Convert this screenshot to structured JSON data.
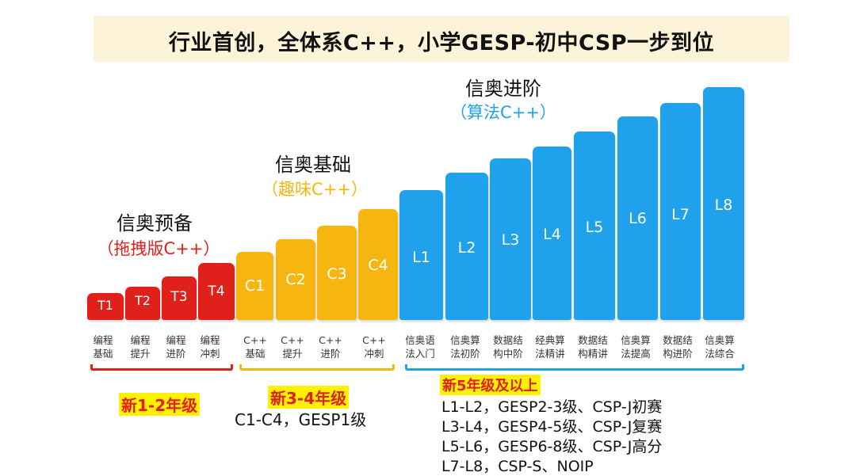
{
  "title": "行业首创，全体系C++，小学GESP-初中CSP一步到位",
  "colors": {
    "banner_bg": "#fdf3d9",
    "red": "#e0201b",
    "orange": "#f7b60f",
    "blue": "#1fa1ec",
    "highlight": "#fff200"
  },
  "groups": [
    {
      "title": "信奥预备",
      "subtitle": "（拖拽版C++）"
    },
    {
      "title": "信奥基础",
      "subtitle": "（趣味C++）"
    },
    {
      "title": "信奥进阶",
      "subtitle": "（算法C++）"
    }
  ],
  "stages": [
    {
      "code": "T1",
      "course": "编程\n基础"
    },
    {
      "code": "T2",
      "course": "编程\n提升"
    },
    {
      "code": "T3",
      "course": "编程\n进阶"
    },
    {
      "code": "T4",
      "course": "编程\n冲刺"
    },
    {
      "code": "C1",
      "course": "C++\n基础"
    },
    {
      "code": "C2",
      "course": "C++\n提升"
    },
    {
      "code": "C3",
      "course": "C++\n进阶"
    },
    {
      "code": "C4",
      "course": "C++\n冲刺"
    },
    {
      "code": "L1",
      "course": "信奥语\n法入门"
    },
    {
      "code": "L2",
      "course": "信奥算\n法初阶"
    },
    {
      "code": "L3",
      "course": "数据结\n构中阶"
    },
    {
      "code": "L4",
      "course": "经典算\n法精讲"
    },
    {
      "code": "L5",
      "course": "数据结\n构精讲"
    },
    {
      "code": "L6",
      "course": "信奥算\n法提高"
    },
    {
      "code": "L7",
      "course": "数据结\n构进阶"
    },
    {
      "code": "L8",
      "course": "信奥算\n法综合"
    }
  ],
  "grades": {
    "g1": "新1-2年级",
    "g2": "新3-4年级",
    "g2_note": "C1-C4，GESP1级",
    "g3": "新5年级及以上",
    "g3_notes": [
      "L1-L2，GESP2-3级、CSP-J初赛",
      "L3-L4，GESP4-5级、CSP-J复赛",
      "L5-L6，GESP6-8级、CSP-J高分",
      "L7-L8，CSP-S、NOIP"
    ]
  }
}
